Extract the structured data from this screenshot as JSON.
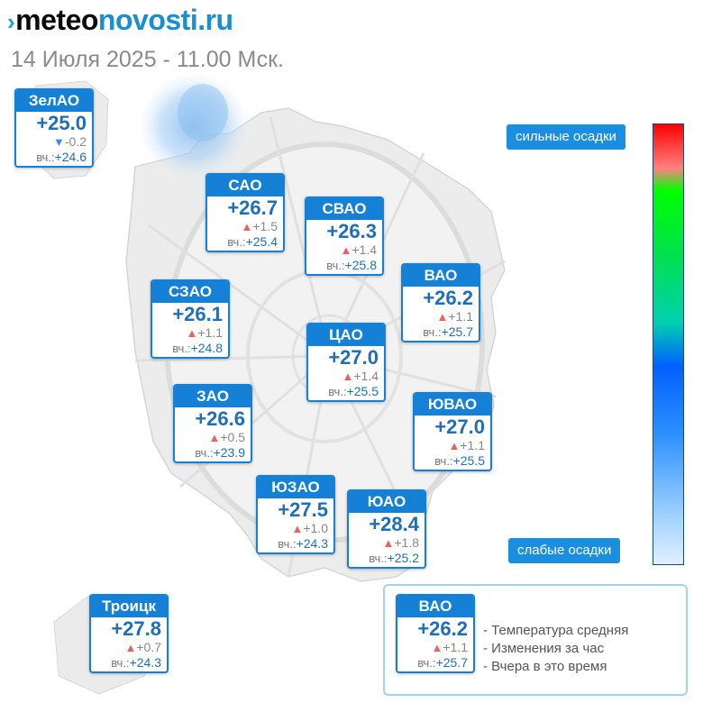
{
  "header": {
    "logo_mark": "›",
    "logo_part1": "meteo",
    "logo_part2": "novosti",
    "logo_part3": ".ru",
    "date": "14 Июля 2025 - 11.00 Мск."
  },
  "colors": {
    "card_blue": "#1581d6",
    "temp_text": "#1f6fb8",
    "up_arrow": "#e8635e",
    "down_arrow": "#3a8fe0"
  },
  "districts": [
    {
      "name": "ЗелАО",
      "temp": "+25.0",
      "dir": "down",
      "change": "-0.2",
      "yesterday_label": "вч.:",
      "yesterday": "+24.6"
    },
    {
      "name": "САО",
      "temp": "+26.7",
      "dir": "up",
      "change": "+1.5",
      "yesterday_label": "вч.:",
      "yesterday": "+25.4"
    },
    {
      "name": "СВАО",
      "temp": "+26.3",
      "dir": "up",
      "change": "+1.4",
      "yesterday_label": "вч.:",
      "yesterday": "+25.8"
    },
    {
      "name": "ВАО",
      "temp": "+26.2",
      "dir": "up",
      "change": "+1.1",
      "yesterday_label": "вч.:",
      "yesterday": "+25.7"
    },
    {
      "name": "СЗАО",
      "temp": "+26.1",
      "dir": "up",
      "change": "+1.1",
      "yesterday_label": "вч.:",
      "yesterday": "+24.8"
    },
    {
      "name": "ЦАО",
      "temp": "+27.0",
      "dir": "up",
      "change": "+1.4",
      "yesterday_label": "вч.:",
      "yesterday": "+25.5"
    },
    {
      "name": "ЗАО",
      "temp": "+26.6",
      "dir": "up",
      "change": "+0.5",
      "yesterday_label": "вч.:",
      "yesterday": "+23.9"
    },
    {
      "name": "ЮВАО",
      "temp": "+27.0",
      "dir": "up",
      "change": "+1.1",
      "yesterday_label": "вч.:",
      "yesterday": "+25.5"
    },
    {
      "name": "ЮЗАО",
      "temp": "+27.5",
      "dir": "up",
      "change": "+1.0",
      "yesterday_label": "вч.:",
      "yesterday": "+24.3"
    },
    {
      "name": "ЮАО",
      "temp": "+28.4",
      "dir": "up",
      "change": "+1.8",
      "yesterday_label": "вч.:",
      "yesterday": "+25.2"
    },
    {
      "name": "Троицк",
      "temp": "+27.8",
      "dir": "up",
      "change": "+0.7",
      "yesterday_label": "вч.:",
      "yesterday": "+24.3"
    }
  ],
  "precip_scale": {
    "top_label": "сильные осадки",
    "bottom_label": "слабые осадки"
  },
  "legend": {
    "sample": {
      "name": "ВАО",
      "temp": "+26.2",
      "dir": "up",
      "change": "+1.1",
      "yesterday_label": "вч.:",
      "yesterday": "+25.7"
    },
    "items": [
      "- Температура средняя",
      "- Изменения за час",
      "- Вчера в это время"
    ]
  }
}
